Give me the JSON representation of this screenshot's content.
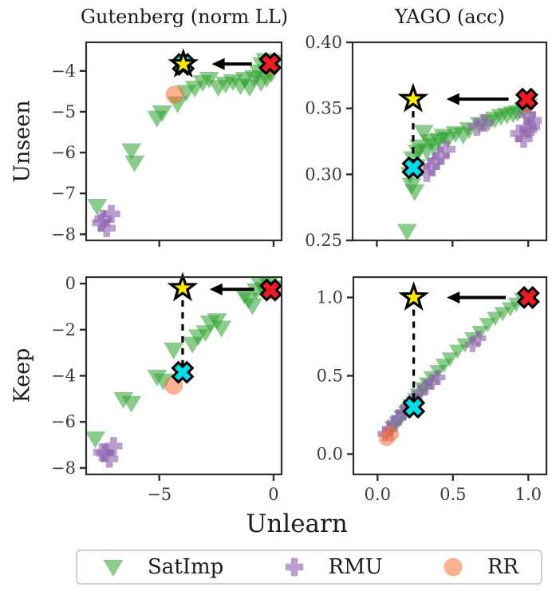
{
  "titles": {
    "col1": "Gutenberg (norm LL)",
    "col2": "YAGO (acc)"
  },
  "row_labels": {
    "top": "Unseen",
    "bottom": "Keep"
  },
  "xlabel": "Unlearn",
  "legend": {
    "items": [
      {
        "label": "SatImp",
        "marker": "triangle-down",
        "color": "#2ca02c",
        "alpha": 0.55
      },
      {
        "label": "RMU",
        "marker": "plus",
        "color": "#9063ae",
        "alpha": 0.62
      },
      {
        "label": "RR",
        "marker": "circle",
        "color": "#f4682f",
        "alpha": 0.52
      }
    ]
  },
  "special_colors": {
    "red_x": "#ed1c24",
    "star": "#ffe900",
    "cyan_x": "#00dce8",
    "edge": "#000000",
    "spine": "#2e2e2e",
    "tick_text": "#3c3c3c"
  },
  "chart_data": [
    {
      "name": "gutenberg-unseen",
      "type": "scatter",
      "title": "Gutenberg (norm LL)",
      "ylabel": "Unseen",
      "xlim": [
        -8.2,
        0.35
      ],
      "ylim": [
        -8.15,
        -3.3
      ],
      "grid": false,
      "marker_scale": 1,
      "yticks": [
        {
          "v": -4,
          "label": "−4"
        },
        {
          "v": -5,
          "label": "−5"
        },
        {
          "v": -6,
          "label": "−6"
        },
        {
          "v": -7,
          "label": "−7"
        },
        {
          "v": -8,
          "label": "−8"
        }
      ],
      "xticks": [
        {
          "v": -5,
          "label": ""
        },
        {
          "v": 0,
          "label": ""
        }
      ],
      "series": [
        {
          "name": "SatImp",
          "marker": "triangle-down",
          "points": [
            [
              -7.72,
              -7.31
            ],
            [
              -6.22,
              -5.95
            ],
            [
              -6.08,
              -6.25
            ],
            [
              -5.1,
              -5.15
            ],
            [
              -4.88,
              -5.02
            ],
            [
              -4.2,
              -4.8
            ],
            [
              -3.82,
              -4.52
            ],
            [
              -3.45,
              -4.42
            ],
            [
              -3.1,
              -4.28
            ],
            [
              -2.82,
              -4.2
            ],
            [
              -2.42,
              -4.4
            ],
            [
              -2.1,
              -4.32
            ],
            [
              -1.78,
              -4.26
            ],
            [
              -1.45,
              -4.36
            ],
            [
              -1.25,
              -4.2
            ],
            [
              -1.05,
              -4.4
            ],
            [
              -0.85,
              -4.16
            ],
            [
              -0.65,
              -4.02
            ],
            [
              -0.5,
              -3.84
            ],
            [
              -0.35,
              -3.74
            ],
            [
              -0.2,
              -3.92
            ],
            [
              -0.1,
              -4.06
            ],
            [
              0.05,
              -3.78
            ],
            [
              -0.3,
              -4.18
            ],
            [
              -0.55,
              -4.28
            ]
          ]
        },
        {
          "name": "RMU",
          "marker": "plus",
          "points": [
            [
              -7.45,
              -7.62
            ],
            [
              -7.1,
              -7.5
            ],
            [
              -7.3,
              -7.85
            ],
            [
              -7.55,
              -7.72
            ]
          ]
        },
        {
          "name": "RR",
          "marker": "circle",
          "points": [
            [
              -4.32,
              -4.58
            ],
            [
              -0.12,
              -3.88
            ]
          ]
        }
      ],
      "annotations": {
        "red_x": [
          -0.15,
          -3.82
        ],
        "star": [
          -3.95,
          -3.84
        ],
        "cyan_x": [
          -3.95,
          -3.84
        ],
        "arrow": {
          "y": -3.83,
          "x_tail": -0.95,
          "x_head": -2.7
        }
      }
    },
    {
      "name": "yago-unseen",
      "type": "scatter",
      "title": "YAGO (acc)",
      "ylabel": "Unseen",
      "xlim": [
        -0.16,
        1.12
      ],
      "ylim": [
        0.25,
        0.4
      ],
      "grid": false,
      "marker_scale": 1,
      "yticks": [
        {
          "v": 0.4,
          "label": "0.40"
        },
        {
          "v": 0.35,
          "label": "0.35"
        },
        {
          "v": 0.3,
          "label": "0.30"
        },
        {
          "v": 0.25,
          "label": "0.25"
        }
      ],
      "xticks": [
        {
          "v": 0.0,
          "label": ""
        },
        {
          "v": 0.5,
          "label": ""
        },
        {
          "v": 1.0,
          "label": ""
        }
      ],
      "series": [
        {
          "name": "SatImp",
          "marker": "triangle-down",
          "points": [
            [
              0.2,
              0.257
            ],
            [
              0.23,
              0.292
            ],
            [
              0.25,
              0.287
            ],
            [
              0.26,
              0.306
            ],
            [
              0.27,
              0.317
            ],
            [
              0.28,
              0.321
            ],
            [
              0.31,
              0.332
            ],
            [
              0.33,
              0.318
            ],
            [
              0.35,
              0.325
            ],
            [
              0.38,
              0.322
            ],
            [
              0.41,
              0.326
            ],
            [
              0.44,
              0.329
            ],
            [
              0.47,
              0.327
            ],
            [
              0.52,
              0.331
            ],
            [
              0.57,
              0.33
            ],
            [
              0.61,
              0.334
            ],
            [
              0.68,
              0.338
            ],
            [
              0.74,
              0.34
            ],
            [
              0.78,
              0.342
            ],
            [
              0.82,
              0.344
            ],
            [
              0.86,
              0.345
            ],
            [
              0.9,
              0.346
            ],
            [
              0.93,
              0.347
            ],
            [
              0.97,
              0.349
            ],
            [
              1.0,
              0.352
            ],
            [
              0.22,
              0.3
            ],
            [
              0.24,
              0.312
            ]
          ]
        },
        {
          "name": "RMU",
          "marker": "plus",
          "points": [
            [
              0.33,
              0.301
            ],
            [
              0.36,
              0.306
            ],
            [
              0.39,
              0.31
            ],
            [
              0.42,
              0.314
            ],
            [
              0.46,
              0.319
            ],
            [
              0.66,
              0.336
            ],
            [
              0.71,
              0.339
            ],
            [
              0.94,
              0.331
            ],
            [
              0.97,
              0.327
            ],
            [
              1.0,
              0.334
            ],
            [
              1.03,
              0.341
            ],
            [
              0.99,
              0.345
            ],
            [
              1.02,
              0.336
            ]
          ]
        },
        {
          "name": "RR",
          "marker": "circle",
          "points": [
            [
              0.99,
              0.354
            ]
          ]
        }
      ],
      "annotations": {
        "red_x": [
          0.99,
          0.357
        ],
        "star": [
          0.24,
          0.357
        ],
        "cyan_x": [
          0.24,
          0.305
        ],
        "arrow": {
          "y": 0.357,
          "x_tail": 0.87,
          "x_head": 0.46
        }
      }
    },
    {
      "name": "gutenberg-keep",
      "type": "scatter",
      "title": "Gutenberg (norm LL)",
      "ylabel": "Keep",
      "xlim": [
        -8.2,
        0.35
      ],
      "ylim": [
        -8.28,
        0.28
      ],
      "grid": false,
      "marker_scale": 1,
      "yticks": [
        {
          "v": 0,
          "label": "0"
        },
        {
          "v": -2,
          "label": "−2"
        },
        {
          "v": -4,
          "label": "−4"
        },
        {
          "v": -6,
          "label": "−6"
        },
        {
          "v": -8,
          "label": "−8"
        }
      ],
      "xticks": [
        {
          "v": -5,
          "label": "−5"
        },
        {
          "v": 0,
          "label": "0"
        }
      ],
      "series": [
        {
          "name": "SatImp",
          "marker": "triangle-down",
          "points": [
            [
              -7.8,
              -6.73
            ],
            [
              -6.57,
              -5.02
            ],
            [
              -6.22,
              -5.19
            ],
            [
              -5.1,
              -4.05
            ],
            [
              -4.83,
              -4.22
            ],
            [
              -4.37,
              -2.87
            ],
            [
              -3.55,
              -2.62
            ],
            [
              -3.3,
              -2.3
            ],
            [
              -2.98,
              -2.12
            ],
            [
              -2.78,
              -1.7
            ],
            [
              -2.48,
              -1.6
            ],
            [
              -2.28,
              -1.92
            ],
            [
              -1.28,
              -0.5
            ],
            [
              -1.1,
              -0.7
            ],
            [
              -0.92,
              -0.95
            ],
            [
              -0.75,
              -0.3
            ],
            [
              -0.55,
              -0.08
            ],
            [
              -0.38,
              -0.25
            ],
            [
              -0.22,
              -0.02
            ],
            [
              -0.08,
              -0.18
            ]
          ]
        },
        {
          "name": "RMU",
          "marker": "plus",
          "points": [
            [
              -7.35,
              -7.35
            ],
            [
              -7.0,
              -7.05
            ],
            [
              -7.18,
              -7.6
            ],
            [
              -7.5,
              -7.32
            ]
          ]
        },
        {
          "name": "RR",
          "marker": "circle",
          "points": [
            [
              -4.37,
              -4.42
            ],
            [
              -0.1,
              -0.3
            ]
          ]
        }
      ],
      "annotations": {
        "red_x": [
          -0.12,
          -0.28
        ],
        "star": [
          -3.98,
          -0.2
        ],
        "cyan_x": [
          -3.98,
          -3.85
        ],
        "arrow": {
          "y": -0.25,
          "x_tail": -0.85,
          "x_head": -2.8
        }
      }
    },
    {
      "name": "yago-keep",
      "type": "scatter",
      "title": "YAGO (acc)",
      "ylabel": "Keep",
      "xlim": [
        -0.16,
        1.12
      ],
      "ylim": [
        -0.13,
        1.13
      ],
      "grid": false,
      "marker_scale": 0.85,
      "yticks": [
        {
          "v": 1.0,
          "label": "1.0"
        },
        {
          "v": 0.5,
          "label": "0.5"
        },
        {
          "v": 0.0,
          "label": "0.0"
        }
      ],
      "xticks": [
        {
          "v": 0.0,
          "label": "0.0"
        },
        {
          "v": 0.5,
          "label": "0.5"
        },
        {
          "v": 1.0,
          "label": "1.0"
        }
      ],
      "series": [
        {
          "name": "SatImp",
          "marker": "triangle-down",
          "points": [
            [
              0.1,
              0.17
            ],
            [
              0.13,
              0.2
            ],
            [
              0.16,
              0.24
            ],
            [
              0.19,
              0.27
            ],
            [
              0.22,
              0.31
            ],
            [
              0.25,
              0.35
            ],
            [
              0.27,
              0.38
            ],
            [
              0.3,
              0.42
            ],
            [
              0.33,
              0.45
            ],
            [
              0.36,
              0.49
            ],
            [
              0.4,
              0.53
            ],
            [
              0.44,
              0.57
            ],
            [
              0.48,
              0.61
            ],
            [
              0.53,
              0.66
            ],
            [
              0.58,
              0.7
            ],
            [
              0.63,
              0.74
            ],
            [
              0.68,
              0.78
            ],
            [
              0.73,
              0.83
            ],
            [
              0.78,
              0.87
            ],
            [
              0.83,
              0.9
            ],
            [
              0.88,
              0.93
            ],
            [
              0.92,
              0.96
            ],
            [
              0.96,
              0.99
            ],
            [
              1.0,
              1.01
            ]
          ]
        },
        {
          "name": "RMU",
          "marker": "plus",
          "points": [
            [
              0.05,
              0.13
            ],
            [
              0.08,
              0.16
            ],
            [
              0.11,
              0.2
            ],
            [
              0.14,
              0.23
            ],
            [
              0.17,
              0.27
            ],
            [
              0.2,
              0.3
            ],
            [
              0.24,
              0.35
            ],
            [
              0.28,
              0.39
            ],
            [
              0.32,
              0.43
            ],
            [
              0.36,
              0.46
            ],
            [
              0.4,
              0.49
            ],
            [
              0.63,
              0.7
            ],
            [
              0.67,
              0.74
            ]
          ]
        },
        {
          "name": "RR",
          "marker": "circle",
          "points": [
            [
              0.06,
              0.1
            ],
            [
              0.09,
              0.13
            ]
          ]
        }
      ],
      "annotations": {
        "red_x": [
          1.0,
          1.0
        ],
        "star": [
          0.24,
          1.0
        ],
        "cyan_x": [
          0.24,
          0.3
        ],
        "arrow": {
          "y": 1.0,
          "x_tail": 0.85,
          "x_head": 0.46
        }
      }
    }
  ]
}
